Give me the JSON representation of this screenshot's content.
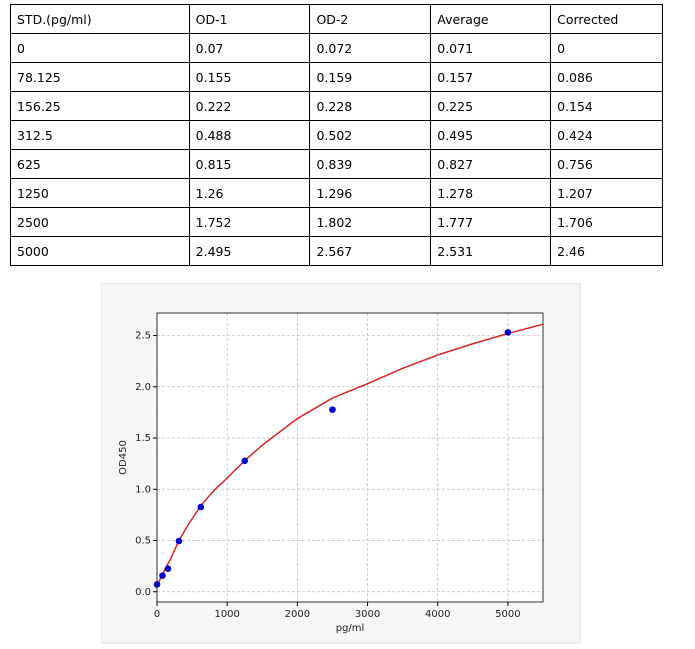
{
  "table": {
    "header": [
      "STD.(pg/ml)",
      "OD-1",
      "OD-2",
      "Average",
      "Corrected"
    ],
    "rows": [
      [
        "0",
        "0.07",
        "0.072",
        "0.071",
        "0"
      ],
      [
        "78.125",
        "0.155",
        "0.159",
        "0.157",
        "0.086"
      ],
      [
        "156.25",
        "0.222",
        "0.228",
        "0.225",
        "0.154"
      ],
      [
        "312.5",
        "0.488",
        "0.502",
        "0.495",
        "0.424"
      ],
      [
        "625",
        "0.815",
        "0.839",
        "0.827",
        "0.756"
      ],
      [
        "1250",
        "1.26",
        "1.296",
        "1.278",
        "1.207"
      ],
      [
        "2500",
        "1.752",
        "1.802",
        "1.777",
        "1.706"
      ],
      [
        "5000",
        "2.495",
        "2.567",
        "2.531",
        "2.46"
      ]
    ]
  },
  "chart_data": {
    "type": "scatter",
    "xlabel": "pg/ml",
    "ylabel": "OD450",
    "xlim": [
      0,
      5500
    ],
    "ylim": [
      -0.1,
      2.72
    ],
    "xticks": [
      0,
      1000,
      2000,
      3000,
      4000,
      5000
    ],
    "yticks": [
      {
        "value": 0,
        "label": "0.0"
      },
      {
        "value": 0.5,
        "label": "0.5"
      },
      {
        "value": 1,
        "label": "1.0"
      },
      {
        "value": 1.5,
        "label": "1.5"
      },
      {
        "value": 2,
        "label": "2.0"
      },
      {
        "value": 2.5,
        "label": "2.5"
      }
    ],
    "grid": true,
    "series": [
      {
        "color": "#d62728",
        "mode": "line",
        "x": [
          0,
          100,
          200,
          312.5,
          450,
          625,
          800,
          1000,
          1250,
          1500,
          2000,
          2500,
          3000,
          3500,
          4000,
          4500,
          5000,
          5500
        ],
        "values": [
          0.06,
          0.2,
          0.33,
          0.5,
          0.66,
          0.84,
          0.98,
          1.11,
          1.28,
          1.43,
          1.69,
          1.89,
          2.03,
          2.18,
          2.31,
          2.42,
          2.52,
          2.61
        ]
      },
      {
        "color": "#0000cc",
        "mode": "marker",
        "x": [
          0,
          78.125,
          156.25,
          312.5,
          625,
          1250,
          2500,
          5000
        ],
        "values": [
          0.071,
          0.157,
          0.225,
          0.495,
          0.827,
          1.278,
          1.777,
          2.531
        ]
      }
    ]
  }
}
